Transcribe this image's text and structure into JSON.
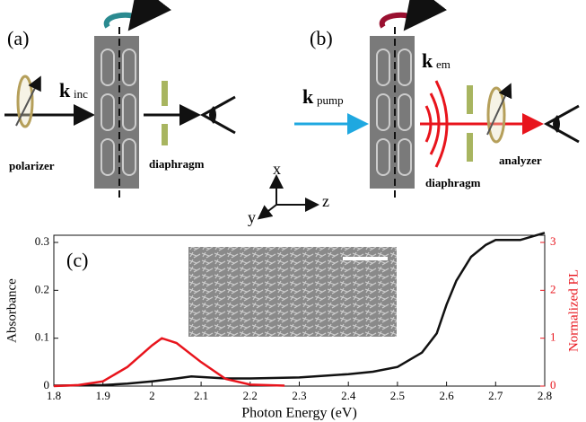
{
  "panel_a": {
    "label": "(a)",
    "wavevector": "k",
    "subscript": "inc",
    "polarizer": "polarizer",
    "diaphragm": "diaphragm"
  },
  "panel_b": {
    "label": "(b)",
    "pump": "k",
    "pump_subscript": "pump",
    "emission": "k",
    "emission_subscript": "em",
    "analyzer": "analyzer",
    "diaphragm": "diaphragm"
  },
  "axes_triad": {
    "x": "x",
    "y": "y",
    "z": "z"
  },
  "chart_data": {
    "type": "line",
    "panel_label": "(c)",
    "x_label": "Photon Energy (eV)",
    "y_label": "Absorbance",
    "y2_label": "Normalized PL",
    "xlim": [
      1.8,
      2.8
    ],
    "xticks": [
      1.8,
      1.9,
      2,
      2.1,
      2.2,
      2.3,
      2.4,
      2.5,
      2.6,
      2.7,
      2.8
    ],
    "ylim": [
      0,
      0.315
    ],
    "yticks": [
      0,
      0.1,
      0.2,
      0.3
    ],
    "y2lim": [
      0,
      3.15
    ],
    "y2ticks": [
      0,
      1,
      2,
      3
    ],
    "series": [
      {
        "name": "Absorbance",
        "color": "#111111",
        "x": [
          1.8,
          1.9,
          1.95,
          2.0,
          2.05,
          2.08,
          2.1,
          2.15,
          2.2,
          2.3,
          2.4,
          2.45,
          2.5,
          2.55,
          2.58,
          2.6,
          2.62,
          2.65,
          2.68,
          2.7,
          2.75,
          2.8
        ],
        "values": [
          0.001,
          0.002,
          0.005,
          0.01,
          0.016,
          0.02,
          0.019,
          0.016,
          0.016,
          0.018,
          0.025,
          0.03,
          0.04,
          0.07,
          0.11,
          0.17,
          0.22,
          0.27,
          0.295,
          0.305,
          0.305,
          0.32
        ]
      },
      {
        "name": "Normalized PL",
        "color": "#e8141c",
        "axis": "y2",
        "x": [
          1.8,
          1.85,
          1.9,
          1.95,
          2.0,
          2.02,
          2.05,
          2.1,
          2.15,
          2.2,
          2.27
        ],
        "values": [
          0,
          0.02,
          0.1,
          0.4,
          0.85,
          1.0,
          0.9,
          0.5,
          0.15,
          0.03,
          0.01
        ]
      }
    ]
  }
}
